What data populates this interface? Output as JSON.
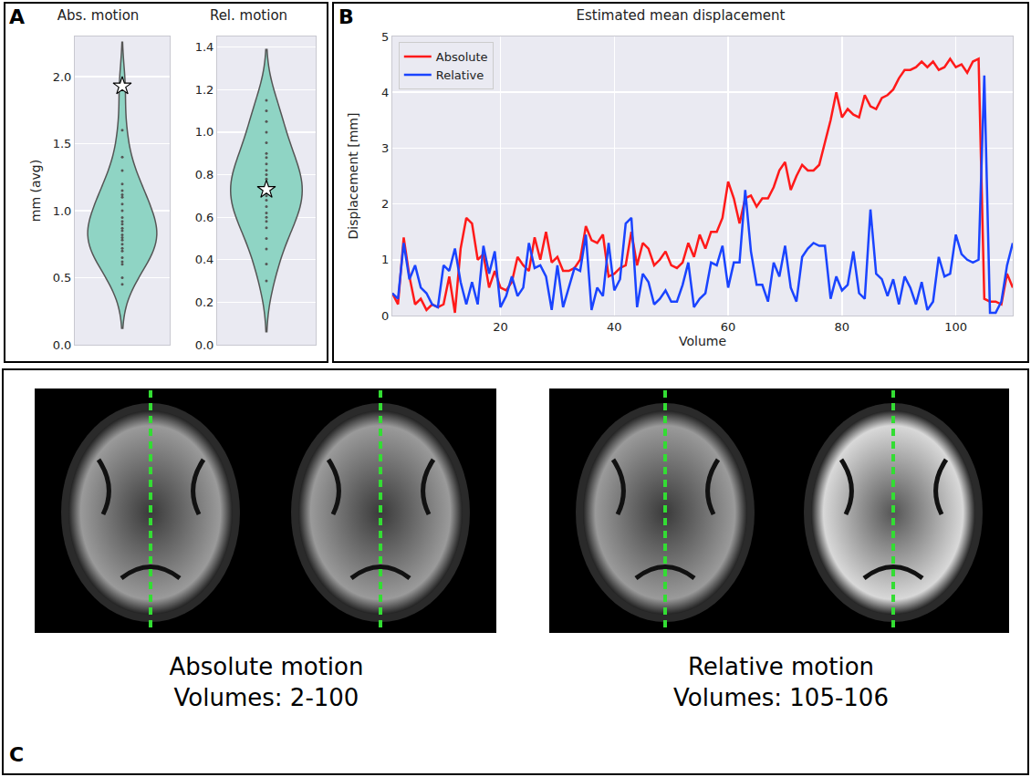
{
  "chart_data": [
    {
      "type": "violin",
      "title": "Abs. motion",
      "y_label": "mm (avg)",
      "values": [
        0.45,
        0.5,
        0.6,
        0.62,
        0.65,
        0.7,
        0.72,
        0.75,
        0.78,
        0.8,
        0.82,
        0.85,
        0.87,
        0.9,
        0.92,
        0.95,
        1.0,
        1.05,
        1.1,
        1.12,
        1.15,
        1.2,
        1.3,
        1.4,
        1.6,
        1.93
      ],
      "highlight": 1.93,
      "marker": "star",
      "color": "#8fd4c4",
      "ylim": [
        0,
        2.3
      ],
      "yticks": [
        {
          "value": 0,
          "label": "0.0"
        },
        {
          "value": 0.5,
          "label": "0.5"
        },
        {
          "value": 1,
          "label": "1.0"
        },
        {
          "value": 1.5,
          "label": "1.5"
        },
        {
          "value": 2,
          "label": "2.0"
        }
      ],
      "grid": true
    },
    {
      "type": "violin",
      "title": "Rel. motion",
      "values": [
        0.3,
        0.38,
        0.45,
        0.5,
        0.55,
        0.58,
        0.6,
        0.62,
        0.65,
        0.68,
        0.7,
        0.72,
        0.73,
        0.75,
        0.78,
        0.8,
        0.82,
        0.85,
        0.88,
        0.9,
        0.95,
        1.0,
        1.05,
        1.1,
        1.15
      ],
      "highlight": 0.73,
      "marker": "star",
      "color": "#8fd4c4",
      "ylim": [
        0,
        1.45
      ],
      "yticks": [
        {
          "value": 0,
          "label": "0.0"
        },
        {
          "value": 0.2,
          "label": "0.2"
        },
        {
          "value": 0.4,
          "label": "0.4"
        },
        {
          "value": 0.6,
          "label": "0.6"
        },
        {
          "value": 0.8,
          "label": "0.8"
        },
        {
          "value": 1,
          "label": "1.0"
        },
        {
          "value": 1.2,
          "label": "1.2"
        },
        {
          "value": 1.4,
          "label": "1.4"
        }
      ],
      "grid": true
    },
    {
      "type": "line",
      "title": "Estimated mean displacement",
      "x_label": "Volume",
      "y_label": "Displacement [mm]",
      "x": [
        1,
        2,
        3,
        4,
        5,
        6,
        7,
        8,
        9,
        10,
        11,
        12,
        13,
        14,
        15,
        16,
        17,
        18,
        19,
        20,
        21,
        22,
        23,
        24,
        25,
        26,
        27,
        28,
        29,
        30,
        31,
        32,
        33,
        34,
        35,
        36,
        37,
        38,
        39,
        40,
        41,
        42,
        43,
        44,
        45,
        46,
        47,
        48,
        49,
        50,
        51,
        52,
        53,
        54,
        55,
        56,
        57,
        58,
        59,
        60,
        61,
        62,
        63,
        64,
        65,
        66,
        67,
        68,
        69,
        70,
        71,
        72,
        73,
        74,
        75,
        76,
        77,
        78,
        79,
        80,
        81,
        82,
        83,
        84,
        85,
        86,
        87,
        88,
        89,
        90,
        91,
        92,
        93,
        94,
        95,
        96,
        97,
        98,
        99,
        100,
        101,
        102,
        103,
        104,
        105,
        106,
        107,
        108,
        109,
        110
      ],
      "series": [
        {
          "name": "Absolute",
          "color": "#ff1a1a",
          "line_style": "solid",
          "values": [
            0.4,
            0.2,
            1.4,
            0.7,
            0.2,
            0.3,
            0.1,
            0.2,
            0.15,
            0.2,
            0.7,
            0.05,
            1.2,
            1.75,
            1.65,
            1.0,
            1.1,
            0.5,
            0.8,
            0.5,
            0.45,
            0.6,
            1.05,
            0.9,
            0.8,
            1.4,
            1.0,
            1.5,
            0.95,
            1.05,
            0.8,
            0.8,
            0.85,
            1.0,
            1.6,
            1.35,
            1.3,
            1.45,
            0.7,
            0.75,
            0.85,
            0.9,
            1.5,
            0.9,
            1.3,
            1.2,
            0.9,
            1.0,
            1.15,
            0.9,
            0.85,
            0.95,
            1.3,
            1.05,
            1.45,
            1.2,
            1.5,
            1.5,
            1.75,
            2.4,
            2.1,
            1.65,
            2.1,
            2.15,
            1.95,
            2.1,
            2.1,
            2.3,
            2.6,
            2.75,
            2.25,
            2.5,
            2.7,
            2.6,
            2.6,
            2.7,
            3.1,
            3.5,
            4.0,
            3.55,
            3.7,
            3.6,
            3.55,
            3.95,
            3.75,
            3.7,
            3.9,
            3.95,
            4.05,
            4.25,
            4.4,
            4.4,
            4.45,
            4.55,
            4.45,
            4.55,
            4.4,
            4.45,
            4.6,
            4.45,
            4.5,
            4.35,
            4.55,
            4.6,
            0.3,
            0.25,
            0.25,
            0.2,
            0.75,
            0.5
          ]
        },
        {
          "name": "Relative",
          "color": "#1a44ff",
          "line_style": "solid",
          "values": [
            0.4,
            0.3,
            1.3,
            0.65,
            0.9,
            0.5,
            0.4,
            0.2,
            0.15,
            0.9,
            0.8,
            1.2,
            0.6,
            0.2,
            0.6,
            0.2,
            1.25,
            0.75,
            1.15,
            0.15,
            0.35,
            0.7,
            0.35,
            0.5,
            1.3,
            0.85,
            0.9,
            0.7,
            0.1,
            0.9,
            0.15,
            0.5,
            0.85,
            0.8,
            1.45,
            0.1,
            0.5,
            0.35,
            1.3,
            0.45,
            0.65,
            1.65,
            1.75,
            0.15,
            0.75,
            0.6,
            0.2,
            0.3,
            0.45,
            0.25,
            0.25,
            0.55,
            0.95,
            0.15,
            0.3,
            0.4,
            0.95,
            0.9,
            1.25,
            0.5,
            0.95,
            0.95,
            2.25,
            1.15,
            0.55,
            0.55,
            0.25,
            0.95,
            0.7,
            1.25,
            0.5,
            0.25,
            1.05,
            1.2,
            1.3,
            1.25,
            1.25,
            0.3,
            0.7,
            0.45,
            0.55,
            1.15,
            0.4,
            0.3,
            1.9,
            0.75,
            0.65,
            0.35,
            0.65,
            0.2,
            0.7,
            0.5,
            0.2,
            0.6,
            0.1,
            0.25,
            1.05,
            0.7,
            0.75,
            1.45,
            1.1,
            1.0,
            0.95,
            1.0,
            4.3,
            0.05,
            0.05,
            0.25,
            0.9,
            1.3
          ]
        }
      ],
      "xlim": [
        1,
        110
      ],
      "xticks": [
        20,
        40,
        60,
        80,
        100
      ],
      "ylim": [
        0,
        5
      ],
      "yticks": [
        0,
        1,
        2,
        3,
        4,
        5
      ],
      "grid": true,
      "legend": "upper left"
    }
  ],
  "panel_letters": [
    "A",
    "B",
    "C"
  ],
  "panel_c": {
    "groups": [
      {
        "title": "Absolute motion",
        "subtitle": "Volumes: 2-100"
      },
      {
        "title": "Relative motion",
        "subtitle": "Volumes: 105-106"
      }
    ]
  }
}
